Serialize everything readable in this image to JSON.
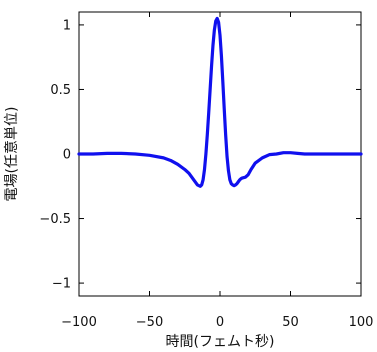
{
  "chart_data": {
    "type": "line",
    "xlabel": "時間(フェムト秒)",
    "ylabel": "電場(任意単位)",
    "xlim": [
      -100,
      100
    ],
    "ylim": [
      -1.1,
      1.1
    ],
    "xticks": [
      -100,
      -50,
      0,
      50,
      100
    ],
    "xtick_labels": [
      "−100",
      "−50",
      "0",
      "50",
      "100"
    ],
    "yticks": [
      -1,
      -0.5,
      0,
      0.5,
      1
    ],
    "ytick_labels": [
      "−1",
      "−0.5",
      "0",
      "0.5",
      "1"
    ],
    "grid": false,
    "legend": "none",
    "series": [
      {
        "color": "#1010ee",
        "x": [
          -100,
          -90,
          -80,
          -70,
          -60,
          -50,
          -40,
          -35,
          -30,
          -25,
          -22,
          -20,
          -18,
          -16,
          -14,
          -13,
          -12,
          -11,
          -10,
          -9,
          -8,
          -7,
          -6,
          -5,
          -4,
          -3,
          -2,
          -1,
          0,
          1,
          2,
          3,
          4,
          5,
          6,
          7,
          8,
          9,
          10,
          11,
          12,
          13,
          14,
          15,
          16,
          18,
          20,
          22,
          25,
          30,
          35,
          40,
          45,
          50,
          55,
          60,
          70,
          80,
          90,
          100
        ],
        "y": [
          0.0,
          0.0,
          0.005,
          0.005,
          0.0,
          -0.01,
          -0.03,
          -0.05,
          -0.08,
          -0.12,
          -0.15,
          -0.18,
          -0.21,
          -0.24,
          -0.25,
          -0.24,
          -0.2,
          -0.12,
          0.0,
          0.15,
          0.32,
          0.5,
          0.68,
          0.84,
          0.96,
          1.03,
          1.05,
          1.02,
          0.92,
          0.76,
          0.56,
          0.35,
          0.15,
          -0.02,
          -0.13,
          -0.2,
          -0.23,
          -0.24,
          -0.245,
          -0.24,
          -0.23,
          -0.215,
          -0.2,
          -0.19,
          -0.185,
          -0.18,
          -0.16,
          -0.12,
          -0.07,
          -0.03,
          -0.005,
          0.0,
          0.01,
          0.01,
          0.005,
          0.0,
          0.0,
          0.0,
          0.0,
          0.0
        ]
      }
    ]
  }
}
